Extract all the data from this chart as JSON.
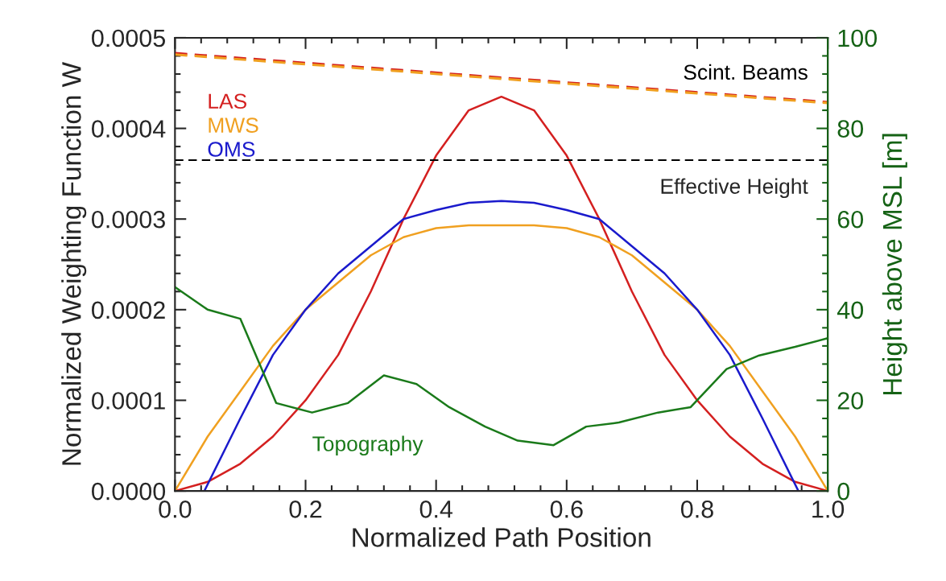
{
  "chart_data": {
    "type": "line",
    "xlabel": "Normalized Path Position",
    "ylabel": "Normalized Weighting Function W",
    "y2label": "Height above MSL [m]",
    "xlim": [
      0,
      1
    ],
    "xticks": [
      {
        "value": 0,
        "label": "0.0"
      },
      {
        "value": 0.2,
        "label": "0.2"
      },
      {
        "value": 0.4,
        "label": "0.4"
      },
      {
        "value": 0.6,
        "label": "0.6"
      },
      {
        "value": 0.8,
        "label": "0.8"
      },
      {
        "value": 1,
        "label": "1.0"
      }
    ],
    "ylim": [
      0,
      0.0005
    ],
    "yticks": [
      {
        "value": 0,
        "label": "0.0000"
      },
      {
        "value": 0.0001,
        "label": "0.0001"
      },
      {
        "value": 0.0002,
        "label": "0.0002"
      },
      {
        "value": 0.0003,
        "label": "0.0003"
      },
      {
        "value": 0.0004,
        "label": "0.0004"
      },
      {
        "value": 0.0005,
        "label": "0.0005"
      }
    ],
    "y2lim": [
      0,
      100
    ],
    "y2ticks": [
      0,
      20,
      40,
      60,
      80,
      100
    ],
    "legend": "top left",
    "grid": false,
    "marker": "none",
    "line_style": "solid",
    "series": [
      {
        "name": "LAS",
        "color": "#d42020",
        "x": [
          0,
          0.05,
          0.1,
          0.15,
          0.2,
          0.25,
          0.3,
          0.35,
          0.4,
          0.45,
          0.5,
          0.55,
          0.6,
          0.65,
          0.7,
          0.75,
          0.8,
          0.85,
          0.9,
          0.95,
          1
        ],
        "values": [
          0,
          1e-05,
          3e-05,
          6e-05,
          0.0001,
          0.00015,
          0.00022,
          0.0003,
          0.00037,
          0.00042,
          0.000435,
          0.00042,
          0.00037,
          0.0003,
          0.00022,
          0.00015,
          0.0001,
          6e-05,
          3e-05,
          1e-05,
          0
        ]
      },
      {
        "name": "MWS",
        "color": "#f0a020",
        "x": [
          0,
          0.05,
          0.1,
          0.15,
          0.2,
          0.25,
          0.3,
          0.35,
          0.4,
          0.45,
          0.5,
          0.55,
          0.6,
          0.65,
          0.7,
          0.75,
          0.8,
          0.85,
          0.9,
          0.95,
          1
        ],
        "values": [
          0,
          6e-05,
          0.00011,
          0.00016,
          0.0002,
          0.00023,
          0.00026,
          0.00028,
          0.00029,
          0.000293,
          0.000293,
          0.000293,
          0.00029,
          0.00028,
          0.00026,
          0.00023,
          0.0002,
          0.00016,
          0.00011,
          6e-05,
          0
        ]
      },
      {
        "name": "OMS",
        "color": "#1a1acc",
        "x": [
          0.045,
          0.1,
          0.15,
          0.2,
          0.25,
          0.3,
          0.35,
          0.4,
          0.45,
          0.5,
          0.55,
          0.6,
          0.65,
          0.7,
          0.75,
          0.8,
          0.85,
          0.9,
          0.955
        ],
        "values": [
          0,
          8e-05,
          0.00015,
          0.0002,
          0.00024,
          0.00027,
          0.0003,
          0.00031,
          0.000318,
          0.00032,
          0.000318,
          0.00031,
          0.0003,
          0.00027,
          0.00024,
          0.0002,
          0.00015,
          8e-05,
          0
        ]
      },
      {
        "color": "#d42020",
        "axis": "y2",
        "line_style": "dashed",
        "x": [
          0,
          1
        ],
        "values": [
          96.6,
          85.8
        ]
      },
      {
        "color": "#f0a020",
        "axis": "y2",
        "line_style": "dashed",
        "x": [
          0,
          1
        ],
        "values": [
          96.3,
          85.6
        ]
      },
      {
        "color": "#1a7a1a",
        "axis": "y2",
        "x": [
          0,
          0.05,
          0.1,
          0.155,
          0.21,
          0.265,
          0.32,
          0.37,
          0.42,
          0.475,
          0.525,
          0.58,
          0.63,
          0.68,
          0.74,
          0.79,
          0.845,
          0.895,
          0.95,
          1
        ],
        "values": [
          45,
          40,
          38,
          19.4,
          17.3,
          19.4,
          25.5,
          23.6,
          18.5,
          14.2,
          11.1,
          10.1,
          14.2,
          15.1,
          17.3,
          18.5,
          26.9,
          29.9,
          31.8,
          33.7
        ]
      }
    ],
    "ref_lines": [
      {
        "axis": "y2",
        "value": 73,
        "label": "Effective Height",
        "color": "#000000",
        "line_style": "dashed"
      }
    ],
    "annotations": [
      "Scint. Beams",
      "Topography"
    ]
  }
}
